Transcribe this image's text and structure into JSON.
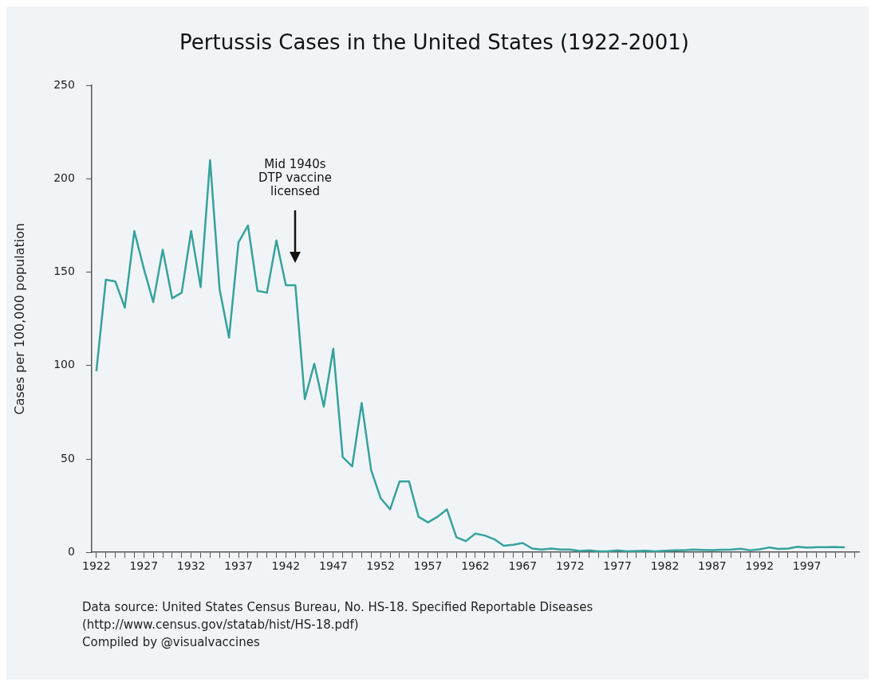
{
  "chart_data": {
    "type": "line",
    "title": "Pertussis Cases in the United States (1922-2001)",
    "ylabel": "Cases per 100,000 population",
    "x": [
      1922,
      1923,
      1924,
      1925,
      1926,
      1927,
      1928,
      1929,
      1930,
      1931,
      1932,
      1933,
      1934,
      1935,
      1936,
      1937,
      1938,
      1939,
      1940,
      1941,
      1942,
      1943,
      1944,
      1945,
      1946,
      1947,
      1948,
      1949,
      1950,
      1951,
      1952,
      1953,
      1954,
      1955,
      1956,
      1957,
      1958,
      1959,
      1960,
      1961,
      1962,
      1963,
      1964,
      1965,
      1966,
      1967,
      1968,
      1969,
      1970,
      1971,
      1972,
      1973,
      1974,
      1975,
      1976,
      1977,
      1978,
      1979,
      1980,
      1981,
      1982,
      1983,
      1984,
      1985,
      1986,
      1987,
      1988,
      1989,
      1990,
      1991,
      1992,
      1993,
      1994,
      1995,
      1996,
      1997,
      1998,
      1999,
      2000,
      2001
    ],
    "series": [
      {
        "color": "#35a29c",
        "values": [
          97,
          146,
          145,
          131,
          172,
          152,
          134,
          162,
          136,
          139,
          172,
          142,
          210,
          141,
          115,
          166,
          175,
          140,
          139,
          167,
          143,
          143,
          82,
          101,
          78,
          109,
          51,
          46,
          80,
          44,
          29,
          23,
          38,
          38,
          19,
          16,
          19,
          23,
          8,
          6,
          10,
          9,
          7,
          3.5,
          4,
          5,
          2,
          1.5,
          2,
          1.5,
          1.5,
          0.7,
          1,
          0.5,
          0.5,
          1,
          0.5,
          0.7,
          0.8,
          0.5,
          0.8,
          1,
          1.1,
          1.5,
          1.3,
          1.2,
          1.4,
          1.5,
          1.9,
          1.1,
          1.6,
          2.6,
          1.8,
          2,
          3,
          2.5,
          2.7,
          2.7,
          2.9,
          2.6
        ]
      }
    ],
    "xlim": [
      1921.5,
      2002.5
    ],
    "xticks": [
      1922,
      {
        "value": 1923,
        "label": null
      },
      {
        "value": 1924,
        "label": null
      },
      {
        "value": 1925,
        "label": null
      },
      {
        "value": 1926,
        "label": null
      },
      1927,
      {
        "value": 1928,
        "label": null
      },
      {
        "value": 1929,
        "label": null
      },
      {
        "value": 1930,
        "label": null
      },
      {
        "value": 1931,
        "label": null
      },
      1932,
      {
        "value": 1933,
        "label": null
      },
      {
        "value": 1934,
        "label": null
      },
      {
        "value": 1935,
        "label": null
      },
      {
        "value": 1936,
        "label": null
      },
      1937,
      {
        "value": 1938,
        "label": null
      },
      {
        "value": 1939,
        "label": null
      },
      {
        "value": 1940,
        "label": null
      },
      {
        "value": 1941,
        "label": null
      },
      1942,
      {
        "value": 1943,
        "label": null
      },
      {
        "value": 1944,
        "label": null
      },
      {
        "value": 1945,
        "label": null
      },
      {
        "value": 1946,
        "label": null
      },
      1947,
      {
        "value": 1948,
        "label": null
      },
      {
        "value": 1949,
        "label": null
      },
      {
        "value": 1950,
        "label": null
      },
      {
        "value": 1951,
        "label": null
      },
      1952,
      {
        "value": 1953,
        "label": null
      },
      {
        "value": 1954,
        "label": null
      },
      {
        "value": 1955,
        "label": null
      },
      {
        "value": 1956,
        "label": null
      },
      1957,
      {
        "value": 1958,
        "label": null
      },
      {
        "value": 1959,
        "label": null
      },
      {
        "value": 1960,
        "label": null
      },
      {
        "value": 1961,
        "label": null
      },
      1962,
      {
        "value": 1963,
        "label": null
      },
      {
        "value": 1964,
        "label": null
      },
      {
        "value": 1965,
        "label": null
      },
      {
        "value": 1966,
        "label": null
      },
      1967,
      {
        "value": 1968,
        "label": null
      },
      {
        "value": 1969,
        "label": null
      },
      {
        "value": 1970,
        "label": null
      },
      {
        "value": 1971,
        "label": null
      },
      1972,
      {
        "value": 1973,
        "label": null
      },
      {
        "value": 1974,
        "label": null
      },
      {
        "value": 1975,
        "label": null
      },
      {
        "value": 1976,
        "label": null
      },
      1977,
      {
        "value": 1978,
        "label": null
      },
      {
        "value": 1979,
        "label": null
      },
      {
        "value": 1980,
        "label": null
      },
      {
        "value": 1981,
        "label": null
      },
      1982,
      {
        "value": 1983,
        "label": null
      },
      {
        "value": 1984,
        "label": null
      },
      {
        "value": 1985,
        "label": null
      },
      {
        "value": 1986,
        "label": null
      },
      1987,
      {
        "value": 1988,
        "label": null
      },
      {
        "value": 1989,
        "label": null
      },
      {
        "value": 1990,
        "label": null
      },
      {
        "value": 1991,
        "label": null
      },
      1992,
      {
        "value": 1993,
        "label": null
      },
      {
        "value": 1994,
        "label": null
      },
      {
        "value": 1995,
        "label": null
      },
      {
        "value": 1996,
        "label": null
      },
      1997,
      {
        "value": 1998,
        "label": null
      },
      {
        "value": 1999,
        "label": null
      },
      {
        "value": 2000,
        "label": null
      },
      {
        "value": 2001,
        "label": null
      },
      {
        "value": 2002,
        "label": null
      }
    ],
    "ylim": [
      0,
      250
    ],
    "yticks": [
      0,
      50,
      100,
      150,
      200,
      250
    ],
    "marker": "none",
    "line_style": "solid",
    "annotations": [
      "Mid 1940s\nDTP vaccine\nlicensed",
      "Data source: United States Census Bureau, No. HS-18. Specified Reportable Diseases",
      "(http://www.census.gov/statab/hist/HS-18.pdf)",
      "Compiled by @visualvaccines"
    ]
  }
}
